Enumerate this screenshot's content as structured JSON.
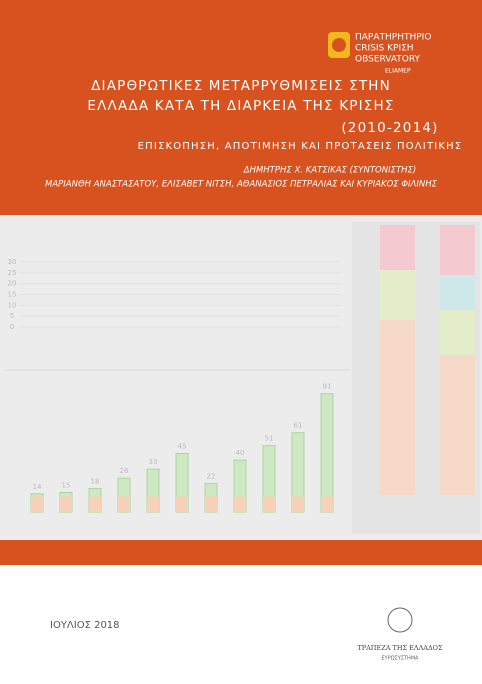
{
  "header": {
    "logo": {
      "lines": [
        "ΠΑΡΑΤΗΡΗΤΗΡΙΟ",
        "CRISIS ΚΡΙΣΗ",
        "OBSERVATORY"
      ],
      "partner": "ELIAMEP"
    },
    "title": [
      "ΔΙΑΡΘΡΩΤΙΚΕΣ ΜΕΤΑΡΡΥΘΜΙΣΕΙΣ ΣΤΗΝ",
      "ΕΛΛΑΔΑ ΚΑΤΑ ΤΗ ΔΙΑΡΚΕΙΑ ΤΗΣ ΚΡΙΣΗΣ",
      "(2010-2014)"
    ],
    "subtitle": "ΕΠΙΣΚΟΠΗΣΗ, ΑΠΟΤΙΜΗΣΗ ΚΑΙ ΠΡΟΤΑΣΕΙΣ ΠΟΛΙΤΙΚΗΣ",
    "authors": [
      "ΔΗΜΗΤΡΗΣ Χ. ΚΑΤΣΙΚΑΣ (ΣΥΝΤΟΝΙΣΤΗΣ)",
      "ΜΑΡΙΑΝΘΗ ΑΝΑΣΤΑΣΑΤΟΥ, ΕΛΙΣΑΒΕΤ ΝΙΤΣΗ, ΑΘΑΝΑΣΙΟΣ ΠΕΤΡΑΛΙΑΣ ΚΑΙ ΚΥΡΙΑΚΟΣ ΦΙΛΙΝΗΣ"
    ]
  },
  "illustration": {
    "top_axis": [
      30,
      25,
      20,
      15,
      10,
      5,
      0
    ],
    "bottom_totals": [
      14,
      15,
      18,
      26,
      33,
      45,
      22,
      40,
      51,
      61,
      91
    ]
  },
  "footer": {
    "date": "ΙΟΥΛΙΟΣ 2018",
    "publisher": "ΤΡΑΠΕΖΑ ΤΗΣ ΕΛΛΑΔΟΣ",
    "publisher_sub": "ΕΥΡΩΣΥΣΤΗΜΑ"
  }
}
